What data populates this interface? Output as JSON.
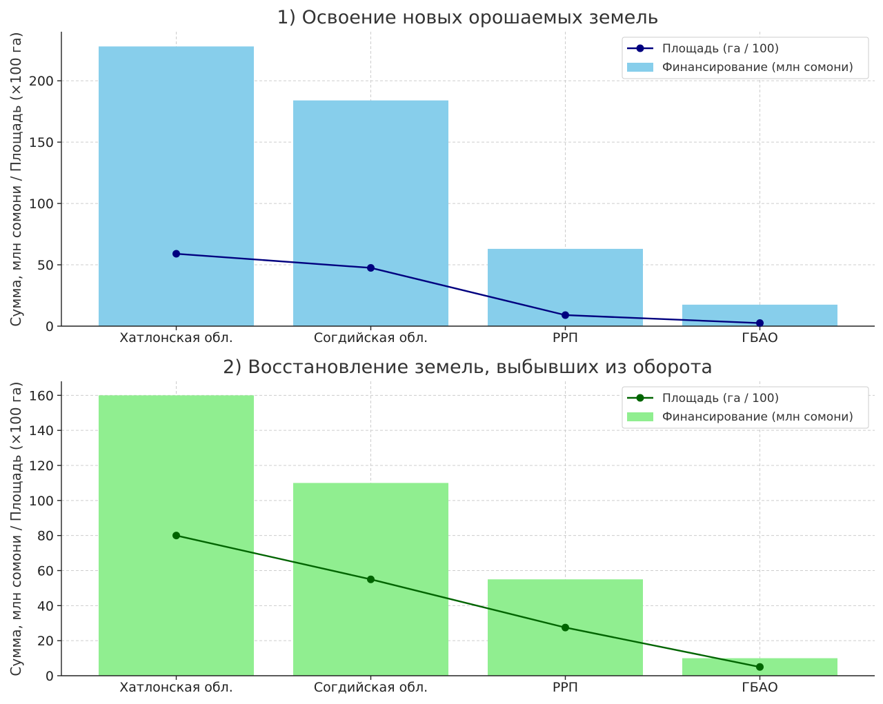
{
  "chart_data": [
    {
      "type": "bar",
      "title": "1) Освоение новых орошаемых земель",
      "ylabel": "Сумма, млн сомони / Площадь (×100 га)",
      "categories": [
        "Хатлонская обл.",
        "Согдийская обл.",
        "РРП",
        "ГБАО"
      ],
      "ylim": [
        0,
        240
      ],
      "yticks": [
        0,
        50,
        100,
        150,
        200
      ],
      "grid": true,
      "legend_position": "top-right",
      "series": [
        {
          "name": "Площадь (га / 100)",
          "kind": "line",
          "color": "#00007f",
          "values": [
            59,
            47.5,
            9,
            2.5
          ]
        },
        {
          "name": "Финансирование (млн сомони)",
          "kind": "bar",
          "color": "#87ceeb",
          "values": [
            228,
            184,
            63,
            17.5
          ]
        }
      ]
    },
    {
      "type": "bar",
      "title": "2) Восстановление земель, выбывших из оборота",
      "ylabel": "Сумма, млн сомони / Площадь (×100 га)",
      "categories": [
        "Хатлонская обл.",
        "Согдийская обл.",
        "РРП",
        "ГБАО"
      ],
      "ylim": [
        0,
        168
      ],
      "yticks": [
        0,
        20,
        40,
        60,
        80,
        100,
        120,
        140,
        160
      ],
      "grid": true,
      "legend_position": "top-right",
      "series": [
        {
          "name": "Площадь (га / 100)",
          "kind": "line",
          "color": "#006400",
          "values": [
            80,
            55,
            27.5,
            5
          ]
        },
        {
          "name": "Финансирование (млн сомони)",
          "kind": "bar",
          "color": "#90ee90",
          "values": [
            160,
            110,
            55,
            10
          ]
        }
      ]
    }
  ]
}
